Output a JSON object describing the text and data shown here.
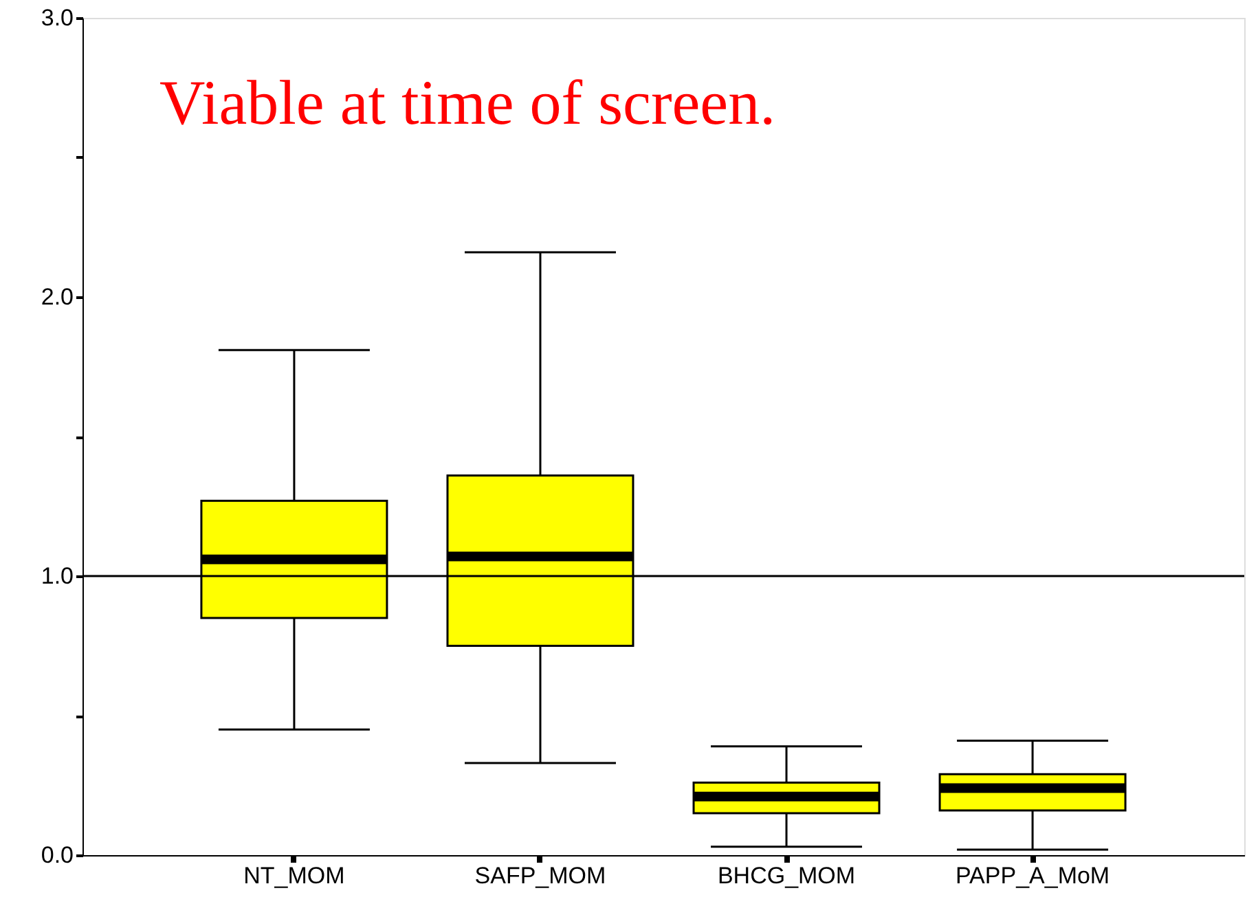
{
  "chart_data": {
    "type": "box",
    "categories": [
      "NT_MOM",
      "SAFP_MOM",
      "BHCG_MOM",
      "PAPP_A_MoM"
    ],
    "series": [
      {
        "color": "#ffff00",
        "boxes": [
          {
            "low": 0.45,
            "q1": 0.85,
            "median": 1.06,
            "q3": 1.27,
            "high": 1.81
          },
          {
            "low": 0.33,
            "q1": 0.75,
            "median": 1.07,
            "q3": 1.36,
            "high": 2.16
          },
          {
            "low": 0.03,
            "q1": 0.15,
            "median": 0.21,
            "q3": 0.26,
            "high": 0.39
          },
          {
            "low": 0.02,
            "q1": 0.16,
            "median": 0.24,
            "q3": 0.29,
            "high": 0.41
          }
        ]
      }
    ],
    "ylim": [
      0,
      3
    ],
    "yticks": [
      {
        "value": 0,
        "label": "0.0"
      },
      {
        "value": 0.5,
        "label": null
      },
      {
        "value": 1,
        "label": "1.0"
      },
      {
        "value": 1.5,
        "label": null
      },
      {
        "value": 2,
        "label": "2.0"
      },
      {
        "value": 2.5,
        "label": null
      },
      {
        "value": 3,
        "label": "3.0"
      }
    ],
    "ref_lines": [
      {
        "axis": "y",
        "value": 1,
        "color": "#000000"
      }
    ],
    "annotations": [
      "Viable at time of screen."
    ],
    "grid": false
  }
}
